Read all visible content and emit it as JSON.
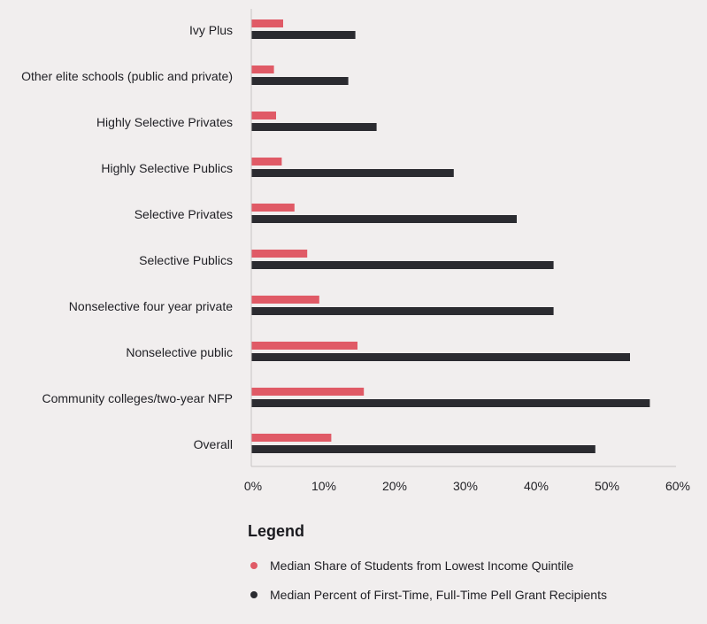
{
  "chart_data": {
    "type": "bar",
    "orientation": "horizontal",
    "categories": [
      "Ivy Plus",
      "Other elite schools (public and private)",
      "Highly Selective Privates",
      "Highly Selective Publics",
      "Selective Privates",
      "Selective Publics",
      "Nonselective four year private",
      "Nonselective public",
      "Community colleges/two-year NFP",
      "Overall"
    ],
    "series": [
      {
        "name": "Median Share of Students from Lowest Income Quintile",
        "color": "#e05a66",
        "values": [
          4.5,
          3.2,
          3.5,
          4.3,
          6.1,
          7.9,
          9.6,
          15.0,
          15.9,
          11.3
        ]
      },
      {
        "name": "Median Percent of First-Time, Full-Time Pell Grant Recipients",
        "color": "#2b2b30",
        "values": [
          14.7,
          13.7,
          17.7,
          28.6,
          37.5,
          42.7,
          42.7,
          53.5,
          56.3,
          48.6
        ]
      }
    ],
    "xlim": [
      0,
      60
    ],
    "x_ticks": [
      "0%",
      "10%",
      "20%",
      "30%",
      "40%",
      "50%",
      "60%"
    ],
    "xlabel": "",
    "ylabel": "",
    "title": "",
    "grid": false,
    "legend_position": "bottom"
  },
  "legend": {
    "title": "Legend"
  }
}
